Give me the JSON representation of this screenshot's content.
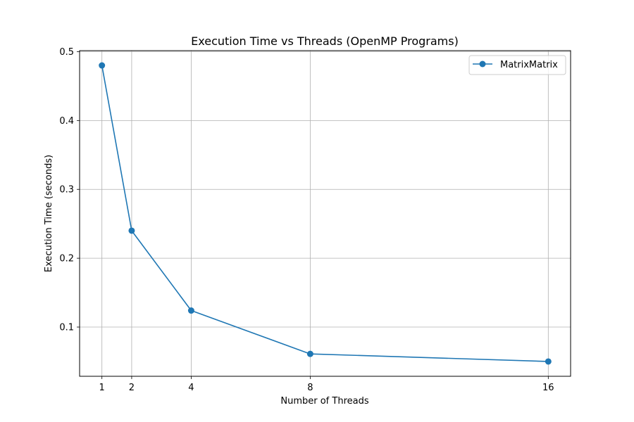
{
  "chart_data": {
    "type": "line",
    "title": "Execution Time vs Threads (OpenMP Programs)",
    "xlabel": "Number of Threads",
    "ylabel": "Execution Time (seconds)",
    "x": [
      1,
      2,
      4,
      8,
      16
    ],
    "x_ticks": [
      1,
      2,
      4,
      8,
      16
    ],
    "y_ticks": [
      0.1,
      0.2,
      0.3,
      0.4,
      0.5
    ],
    "y_tick_labels": [
      "0.1",
      "0.2",
      "0.3",
      "0.4",
      "0.5"
    ],
    "xlim": [
      0.25,
      16.75
    ],
    "ylim": [
      0.0285,
      0.5015
    ],
    "grid": true,
    "legend_position": "top-right",
    "series": [
      {
        "name": "MatrixMatrix",
        "values": [
          0.48,
          0.24,
          0.124,
          0.061,
          0.05
        ],
        "color": "#1f77b4",
        "marker": "circle"
      }
    ]
  }
}
